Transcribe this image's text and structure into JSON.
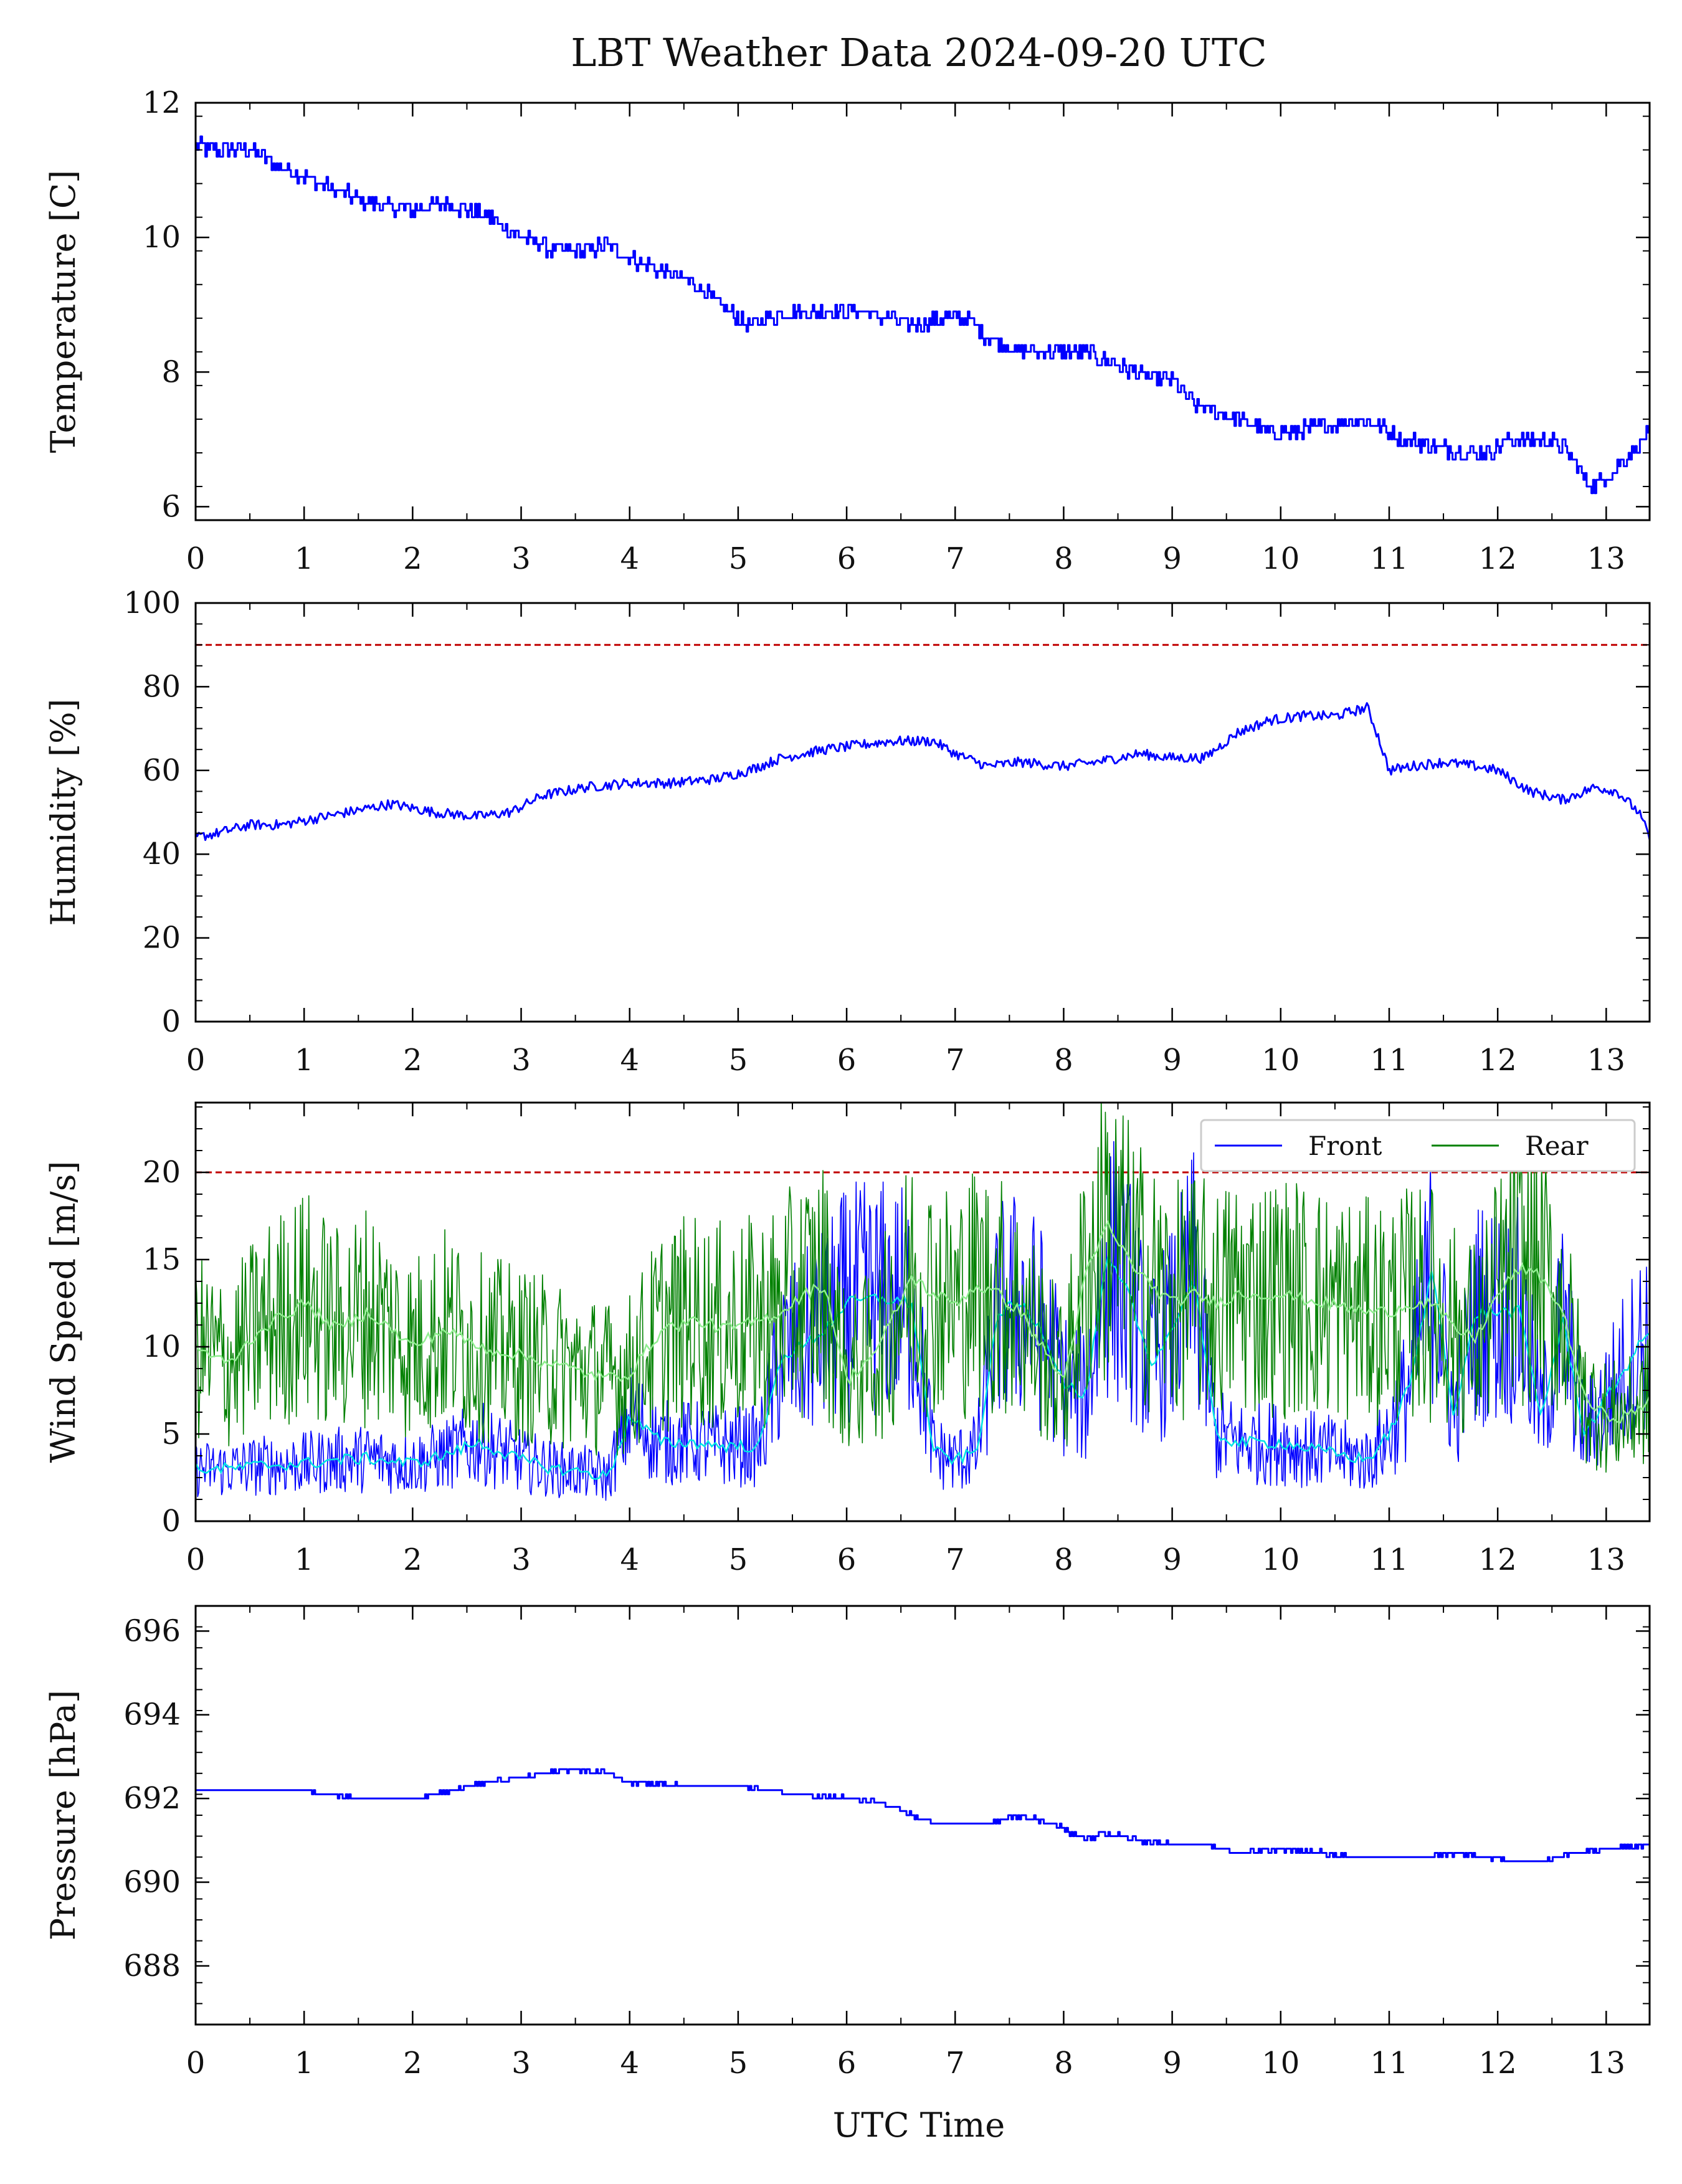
{
  "figure": {
    "title": "LBT Weather Data 2024-09-20 UTC",
    "xlabel": "UTC Time"
  },
  "chart_data": [
    {
      "type": "line",
      "ylabel": "Temperature [C]",
      "xlim": [
        0,
        13.4
      ],
      "ylim": [
        5.8,
        12
      ],
      "xticks": [
        "0",
        "1",
        "2",
        "3",
        "4",
        "5",
        "6",
        "7",
        "8",
        "9",
        "10",
        "11",
        "12",
        "13"
      ],
      "yticks": [
        "6",
        "8",
        "10",
        "12"
      ],
      "grid": false,
      "series": [
        {
          "color": "#0000ff",
          "x": [
            0,
            0.1,
            0.3,
            0.5,
            0.7,
            1.0,
            1.3,
            1.6,
            2.0,
            2.3,
            2.7,
            3.0,
            3.3,
            3.6,
            3.8,
            4.0,
            4.3,
            4.6,
            4.9,
            5.1,
            5.3,
            5.5,
            5.8,
            6.1,
            6.4,
            6.6,
            6.9,
            7.1,
            7.3,
            7.6,
            7.9,
            8.2,
            8.5,
            8.8,
            9.0,
            9.2,
            9.4,
            9.6,
            9.9,
            10.1,
            10.4,
            10.7,
            10.9,
            11.1,
            11.4,
            11.7,
            11.9,
            12.1,
            12.4,
            12.6,
            12.8,
            12.9,
            13.1,
            13.3,
            13.4
          ],
          "y": [
            11.4,
            11.3,
            11.3,
            11.3,
            11.1,
            10.9,
            10.7,
            10.5,
            10.4,
            10.5,
            10.3,
            10.0,
            9.8,
            9.8,
            9.9,
            9.7,
            9.5,
            9.3,
            8.9,
            8.7,
            8.8,
            8.9,
            8.9,
            8.9,
            8.8,
            8.7,
            8.8,
            8.8,
            8.5,
            8.3,
            8.3,
            8.3,
            8.1,
            7.9,
            7.9,
            7.5,
            7.4,
            7.3,
            7.1,
            7.1,
            7.2,
            7.3,
            7.2,
            7.0,
            6.9,
            6.8,
            6.8,
            7.0,
            7.0,
            6.9,
            6.4,
            6.3,
            6.6,
            6.9,
            7.1
          ]
        }
      ]
    },
    {
      "type": "line",
      "ylabel": "Humidity [%]",
      "xlim": [
        0,
        13.4
      ],
      "ylim": [
        0,
        100
      ],
      "xticks": [
        "0",
        "1",
        "2",
        "3",
        "4",
        "5",
        "6",
        "7",
        "8",
        "9",
        "10",
        "11",
        "12",
        "13"
      ],
      "yticks": [
        "0",
        "20",
        "40",
        "60",
        "80",
        "100"
      ],
      "grid": false,
      "threshold": 90,
      "threshold_color": "#c00000",
      "series": [
        {
          "color": "#0000ff",
          "x": [
            0,
            0.2,
            0.5,
            0.8,
            1.0,
            1.4,
            1.8,
            2.2,
            2.6,
            2.9,
            3.2,
            3.6,
            4.0,
            4.4,
            4.8,
            5.1,
            5.4,
            5.8,
            6.1,
            6.4,
            6.8,
            7.0,
            7.3,
            7.6,
            8.0,
            8.3,
            8.7,
            9.0,
            9.3,
            9.6,
            9.9,
            10.2,
            10.5,
            10.8,
            10.9,
            11.0,
            11.2,
            11.5,
            11.8,
            12.0,
            12.3,
            12.6,
            12.9,
            13.1,
            13.3,
            13.4
          ],
          "y": [
            44,
            45,
            47,
            47,
            48,
            50,
            52,
            50,
            49,
            50,
            54,
            56,
            57,
            57,
            58,
            60,
            63,
            65,
            66,
            67,
            67,
            64,
            61,
            62,
            61,
            62,
            64,
            63,
            63,
            69,
            72,
            73,
            73,
            75,
            68,
            60,
            61,
            62,
            61,
            60,
            55,
            53,
            56,
            55,
            50,
            44
          ]
        }
      ]
    },
    {
      "type": "line",
      "ylabel": "Wind Speed [m/s]",
      "xlim": [
        0,
        13.4
      ],
      "ylim": [
        0,
        24
      ],
      "xticks": [
        "0",
        "1",
        "2",
        "3",
        "4",
        "5",
        "6",
        "7",
        "8",
        "9",
        "10",
        "11",
        "12",
        "13"
      ],
      "yticks": [
        "0",
        "5",
        "10",
        "15",
        "20"
      ],
      "grid": false,
      "threshold": 20,
      "threshold_color": "#c00000",
      "legend_position": "top-right",
      "series": [
        {
          "name": "Front",
          "color": "#0000ff",
          "smooth_color": "#00e5e5",
          "x": [
            0,
            0.3,
            0.6,
            1.0,
            1.3,
            1.6,
            2.0,
            2.3,
            2.6,
            3.0,
            3.3,
            3.6,
            3.8,
            4.0,
            4.3,
            4.6,
            4.9,
            5.2,
            5.4,
            5.6,
            5.8,
            6.0,
            6.3,
            6.6,
            6.8,
            7.0,
            7.2,
            7.4,
            7.6,
            7.8,
            8.0,
            8.2,
            8.4,
            8.6,
            8.8,
            9.0,
            9.2,
            9.4,
            9.6,
            10.0,
            10.4,
            10.8,
            11.0,
            11.2,
            11.4,
            11.6,
            11.8,
            12.0,
            12.2,
            12.4,
            12.6,
            12.8,
            13.0,
            13.2,
            13.4
          ],
          "y": [
            3.0,
            3.0,
            3.2,
            3.3,
            3.5,
            3.6,
            3.3,
            3.8,
            4.5,
            3.5,
            3.0,
            2.8,
            2.5,
            6.0,
            4.5,
            4.5,
            4.3,
            4.3,
            9.5,
            10.0,
            11.0,
            12.5,
            12.8,
            12.5,
            4.0,
            3.5,
            4.0,
            12.0,
            12.5,
            11.0,
            8.0,
            7.0,
            15.0,
            13.0,
            9.0,
            11.0,
            14.0,
            5.0,
            4.5,
            4.5,
            4.0,
            3.5,
            5.0,
            8.0,
            14.5,
            6.0,
            12.0,
            12.0,
            12.0,
            6.0,
            11.5,
            5.0,
            7.0,
            9.0,
            11.0
          ]
        },
        {
          "name": "Rear",
          "color": "#008000",
          "smooth_color": "#90ee90",
          "x": [
            0,
            0.3,
            0.6,
            1.0,
            1.3,
            1.6,
            2.0,
            2.3,
            2.6,
            3.0,
            3.3,
            3.6,
            3.8,
            4.0,
            4.3,
            4.6,
            4.9,
            5.2,
            5.4,
            5.6,
            5.8,
            6.0,
            6.3,
            6.6,
            6.8,
            7.0,
            7.2,
            7.4,
            7.6,
            7.8,
            8.0,
            8.2,
            8.4,
            8.6,
            8.8,
            9.0,
            9.2,
            9.4,
            9.6,
            10.0,
            10.4,
            10.8,
            11.0,
            11.2,
            11.4,
            11.6,
            11.8,
            12.0,
            12.2,
            12.4,
            12.6,
            12.8,
            13.0,
            13.2,
            13.4
          ],
          "y": [
            10.0,
            9.0,
            11.0,
            12.5,
            11.0,
            12.0,
            10.0,
            11.0,
            10.0,
            9.5,
            9.0,
            8.5,
            8.2,
            8.5,
            11.0,
            11.5,
            11.0,
            11.5,
            12.0,
            13.0,
            13.5,
            8.0,
            10.0,
            14.0,
            13.0,
            12.5,
            13.5,
            13.0,
            12.0,
            10.0,
            8.0,
            14.0,
            17.0,
            15.0,
            13.5,
            12.5,
            13.0,
            12.5,
            13.0,
            13.0,
            12.5,
            12.0,
            12.0,
            12.5,
            12.5,
            11.0,
            10.5,
            13.0,
            14.5,
            14.0,
            12.0,
            7.0,
            6.0,
            6.0,
            7.0
          ]
        }
      ]
    },
    {
      "type": "line",
      "ylabel": "Pressure [hPa]",
      "xlim": [
        0,
        13.4
      ],
      "ylim": [
        686.6,
        696.6
      ],
      "xticks": [
        "0",
        "1",
        "2",
        "3",
        "4",
        "5",
        "6",
        "7",
        "8",
        "9",
        "10",
        "11",
        "12",
        "13"
      ],
      "yticks": [
        "688",
        "690",
        "692",
        "694",
        "696"
      ],
      "grid": false,
      "series": [
        {
          "color": "#0000ff",
          "x": [
            0,
            0.5,
            1.0,
            1.5,
            2.0,
            2.5,
            3.0,
            3.5,
            3.8,
            4.0,
            4.5,
            5.0,
            5.5,
            6.0,
            6.3,
            6.6,
            6.8,
            7.0,
            7.3,
            7.6,
            7.9,
            8.2,
            8.4,
            8.7,
            9.0,
            9.3,
            9.6,
            10.0,
            10.4,
            10.7,
            11.0,
            11.3,
            11.6,
            11.9,
            12.1,
            12.4,
            12.7,
            13.0,
            13.4
          ],
          "y": [
            692.2,
            692.2,
            692.2,
            692.0,
            692.0,
            692.3,
            692.5,
            692.7,
            692.6,
            692.4,
            692.3,
            692.3,
            692.1,
            692.0,
            691.9,
            691.6,
            691.4,
            691.4,
            691.4,
            691.6,
            691.4,
            691.0,
            691.2,
            691.0,
            690.9,
            690.9,
            690.7,
            690.8,
            690.7,
            690.6,
            690.6,
            690.6,
            690.7,
            690.6,
            690.5,
            690.5,
            690.7,
            690.8,
            690.9
          ]
        }
      ]
    }
  ]
}
